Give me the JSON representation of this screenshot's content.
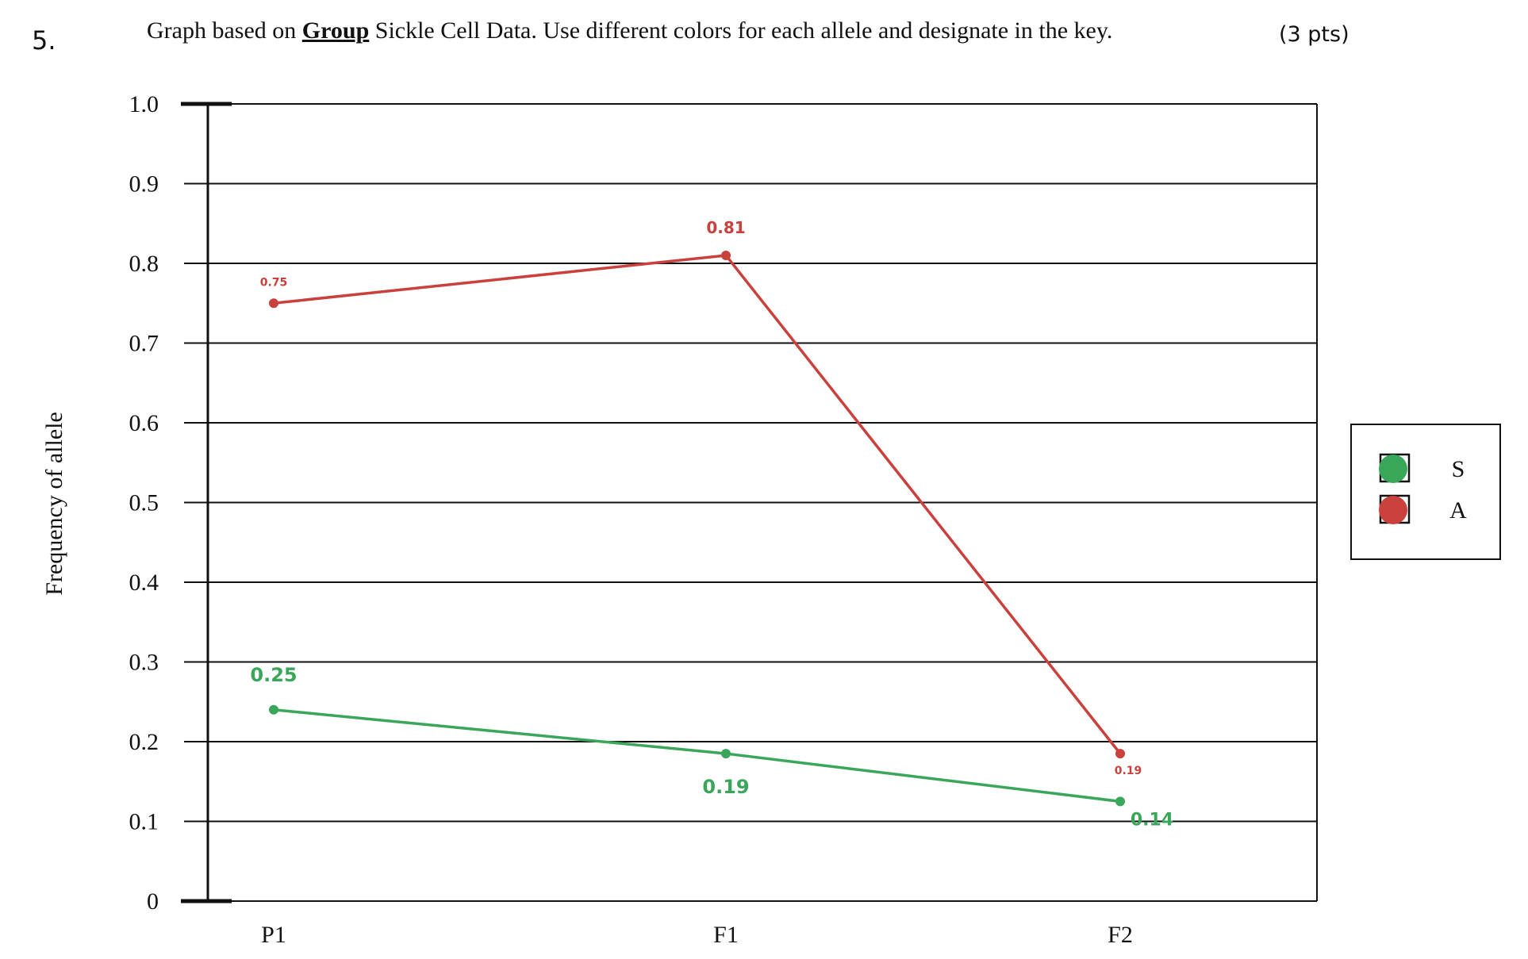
{
  "question": {
    "number": "5.",
    "prompt_before": "Graph based on ",
    "prompt_bold": "Group",
    "prompt_after": " Sickle Cell Data. Use different colors for each allele and designate in the key.",
    "points": "(3 pts)"
  },
  "chart_data": {
    "type": "line",
    "ylabel": "Frequency of allele",
    "xlabel": "",
    "categories": [
      "P1",
      "F1",
      "F2"
    ],
    "ylim": [
      0,
      1.0
    ],
    "yticks": [
      "0",
      "0.1",
      "0.2",
      "0.3",
      "0.4",
      "0.5",
      "0.6",
      "0.7",
      "0.8",
      "0.9",
      "1.0"
    ],
    "grid": true,
    "legend_position": "right",
    "series": [
      {
        "name": "S",
        "color": "#3aa65a",
        "values": [
          0.24,
          0.185,
          0.125
        ],
        "data_labels": [
          "0.25",
          "0.19",
          "0.14"
        ]
      },
      {
        "name": "A",
        "color": "#c9403c",
        "values": [
          0.75,
          0.81,
          0.185
        ],
        "data_labels": [
          "0.75",
          "0.81",
          "0.19"
        ]
      }
    ]
  }
}
